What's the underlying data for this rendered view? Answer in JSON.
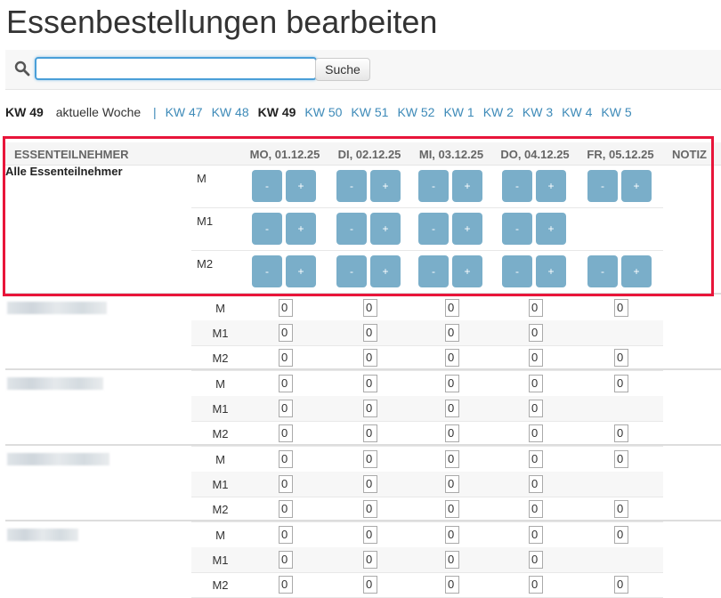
{
  "title": "Essenbestellungen bearbeiten",
  "search": {
    "value": "",
    "button": "Suche",
    "icon": "search-icon"
  },
  "weeknav": {
    "current_label": "KW 49",
    "current_text": "aktuelle Woche",
    "separator": "|",
    "weeks": [
      {
        "label": "KW 47",
        "active": false
      },
      {
        "label": "KW 48",
        "active": false
      },
      {
        "label": "KW 49",
        "active": true
      },
      {
        "label": "KW 50",
        "active": false
      },
      {
        "label": "KW 51",
        "active": false
      },
      {
        "label": "KW 52",
        "active": false
      },
      {
        "label": "KW 1",
        "active": false
      },
      {
        "label": "KW 2",
        "active": false
      },
      {
        "label": "KW 3",
        "active": false
      },
      {
        "label": "KW 4",
        "active": false
      },
      {
        "label": "KW 5",
        "active": false
      }
    ]
  },
  "table": {
    "headers": {
      "name": "ESSENTEILNEHMER",
      "notiz": "NOTIZ",
      "days": [
        "MO, 01.12.25",
        "DI, 02.12.25",
        "MI, 03.12.25",
        "DO, 04.12.25",
        "FR, 05.12.25"
      ]
    },
    "all_label": "Alle Essenteilnehmer",
    "minus": "-",
    "plus": "+",
    "meals": [
      "M",
      "M1",
      "M2"
    ],
    "availability": [
      [
        true,
        true,
        true,
        true,
        true
      ],
      [
        true,
        true,
        true,
        true,
        false
      ],
      [
        true,
        true,
        true,
        true,
        true
      ]
    ],
    "groups": [
      {
        "values": [
          [
            "0",
            "0",
            "0",
            "0",
            "0"
          ],
          [
            "0",
            "0",
            "0",
            "0",
            null
          ],
          [
            "0",
            "0",
            "0",
            "0",
            "0"
          ]
        ]
      },
      {
        "values": [
          [
            "0",
            "0",
            "0",
            "0",
            "0"
          ],
          [
            "0",
            "0",
            "0",
            "0",
            null
          ],
          [
            "0",
            "0",
            "0",
            "0",
            "0"
          ]
        ]
      },
      {
        "values": [
          [
            "0",
            "0",
            "0",
            "0",
            "0"
          ],
          [
            "0",
            "0",
            "0",
            "0",
            null
          ],
          [
            "0",
            "0",
            "0",
            "0",
            "0"
          ]
        ]
      },
      {
        "values": [
          [
            "0",
            "0",
            "0",
            "0",
            "0"
          ],
          [
            "0",
            "0",
            "0",
            "0",
            null
          ],
          [
            "0",
            "0",
            "0",
            "0",
            "0"
          ]
        ]
      }
    ]
  },
  "highlight_color": "#e8153a",
  "button_color": "#7aaec9"
}
